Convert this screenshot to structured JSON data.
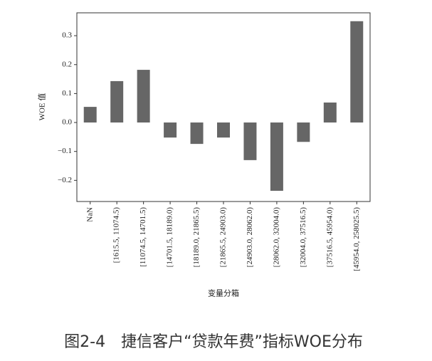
{
  "chart_data": {
    "type": "bar",
    "y_label": "WOE 值",
    "x_label": "变量分箱",
    "categories": [
      "NaN",
      "[1615.5, 11074.5)",
      "[11074.5, 14701.5)",
      "[14701.5, 18189.0)",
      "[18189.0, 21865.5)",
      "[21865.5, 24903.0)",
      "[24903.0, 28062.0)",
      "[28062.0, 32004.0)",
      "[32004.0, 37516.5)",
      "[37516.5, 45954.0)",
      "[45954.0, 258025.5)"
    ],
    "values": [
      0.054,
      0.143,
      0.182,
      -0.052,
      -0.074,
      -0.052,
      -0.13,
      -0.236,
      -0.067,
      0.069,
      0.35
    ],
    "color": "#666666",
    "ylim": [
      -0.273,
      0.379
    ],
    "yticks": [
      {
        "value": -0.2,
        "label": "−0.2"
      },
      {
        "value": -0.1,
        "label": "−0.1"
      },
      {
        "value": 0,
        "label": "0.0"
      },
      0.1,
      0.2,
      0.3
    ]
  },
  "caption": "图2-4　捷信客户“贷款年费”指标WOE分布"
}
